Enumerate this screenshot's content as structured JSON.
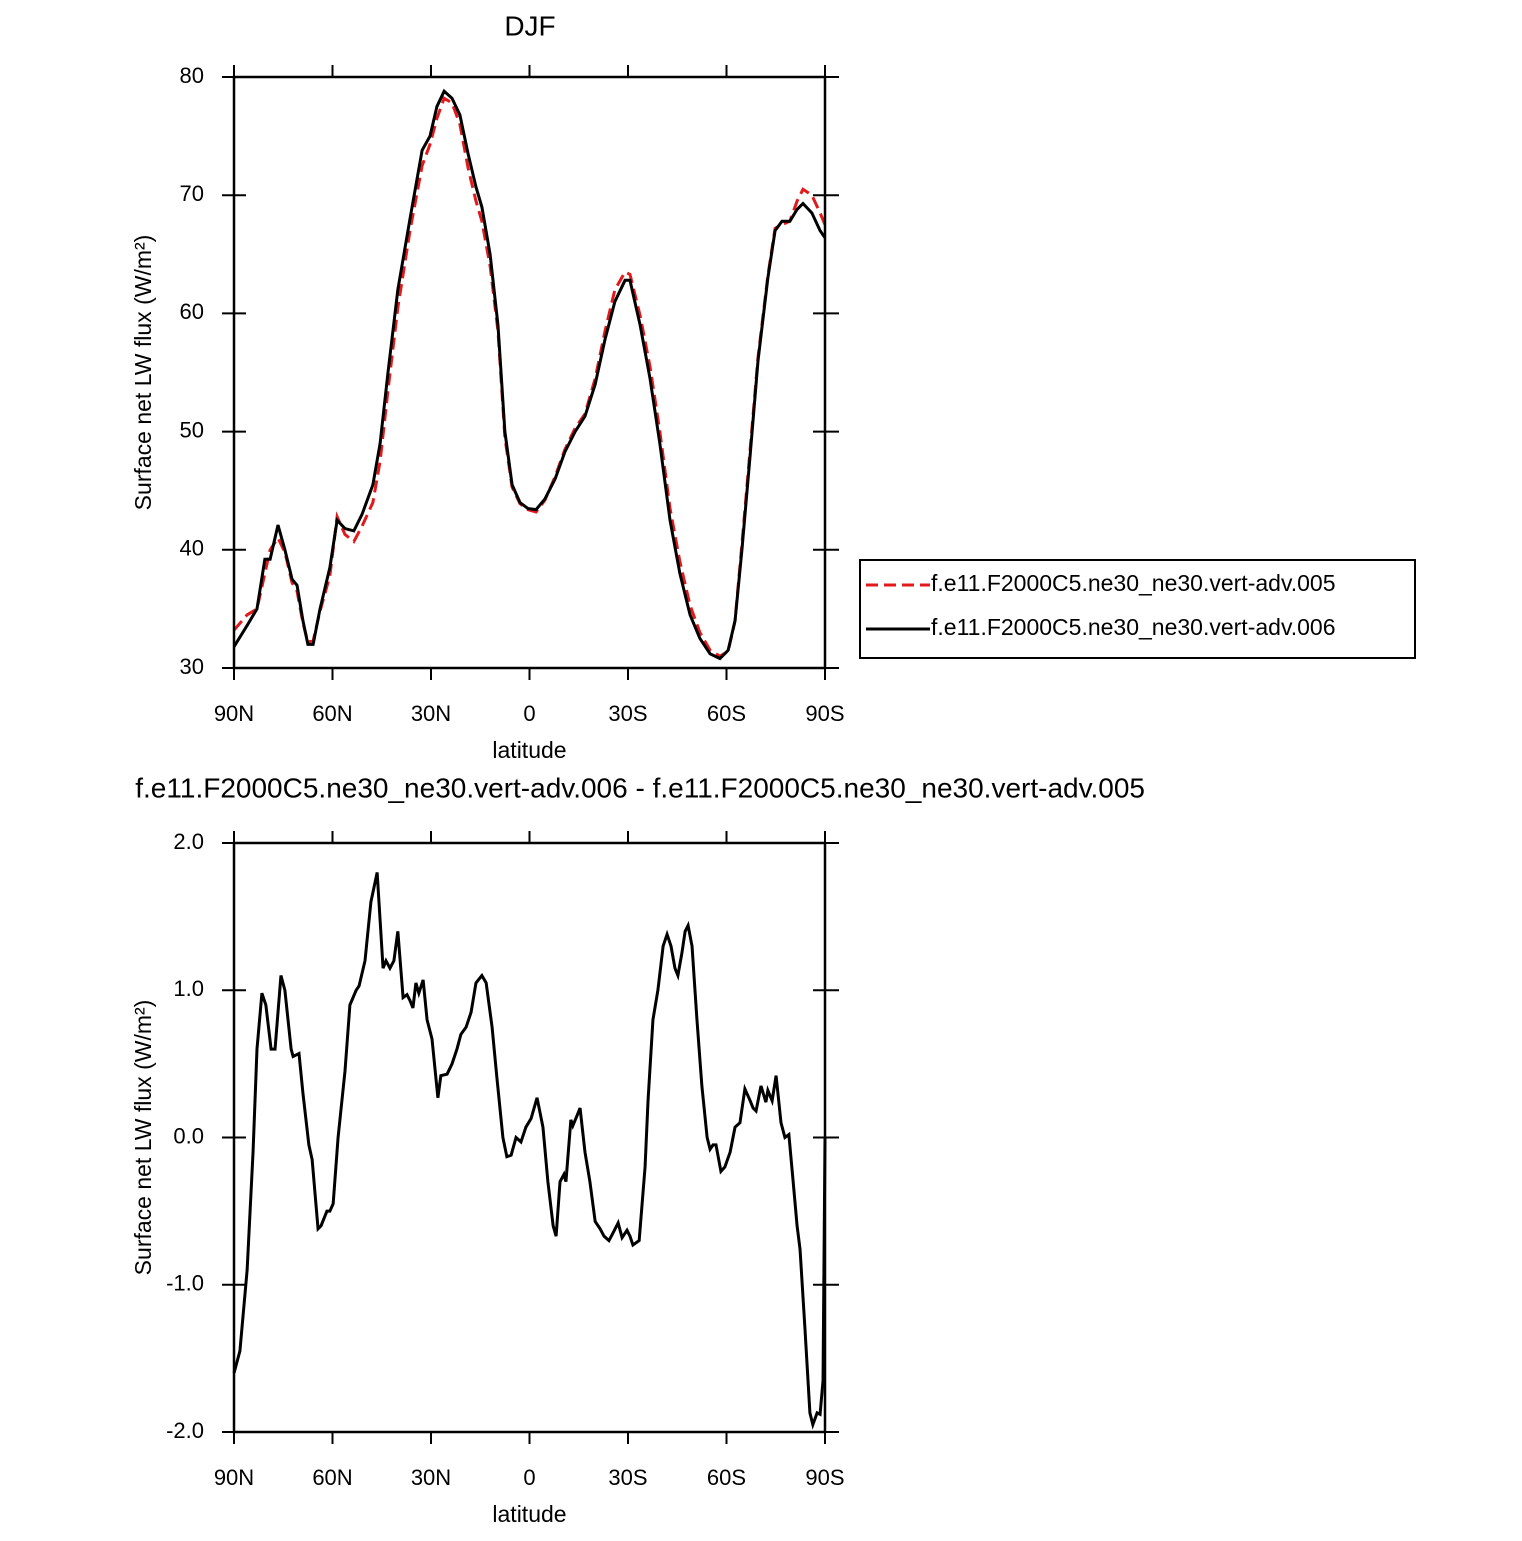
{
  "chart_data": [
    {
      "type": "line",
      "title": "DJF",
      "xlabel": "latitude",
      "ylabel": "Surface net LW flux (W/m²)",
      "x": [
        90,
        86.0,
        83.0,
        80.6,
        79.0,
        76.6,
        74.5,
        72.3,
        70.8,
        69.0,
        67.5,
        65.9,
        63.8,
        60.8,
        58.6,
        56.2,
        53.5,
        51.0,
        47.7,
        45.5,
        43.1,
        40.1,
        36.4,
        32.7,
        30.3,
        28.2,
        26.0,
        23.6,
        21.2,
        18.7,
        16.3,
        14.5,
        12.0,
        9.6,
        7.5,
        5.3,
        2.9,
        0.5,
        -2.0,
        -4.7,
        -7.8,
        -10.8,
        -13.9,
        -16.9,
        -20.0,
        -23.0,
        -26.0,
        -29.1,
        -30.6,
        -33.7,
        -36.7,
        -39.7,
        -42.8,
        -45.8,
        -48.9,
        -51.9,
        -55.0,
        -58.0,
        -60.5,
        -62.6,
        -64.7,
        -67.2,
        -69.6,
        -72.6,
        -74.8,
        -76.9,
        -79.3,
        -81.5,
        -83.3,
        -86.0,
        -88.5,
        -90
      ],
      "series": [
        {
          "name": "f.e11.F2000C5.ne30_ne30.vert-adv.005",
          "color": "#e31a1c",
          "linestyle": "dashed",
          "values": [
            33.2,
            34.5,
            35,
            38,
            40,
            41,
            39.8,
            37.2,
            36.5,
            33.8,
            32.2,
            32.3,
            34.8,
            37.8,
            42.8,
            41.3,
            40.7,
            42,
            44,
            47.5,
            53.5,
            60.5,
            67,
            72.5,
            74.3,
            76.5,
            78.2,
            77.8,
            76,
            72.3,
            69.5,
            67.8,
            64,
            58.5,
            49.5,
            45.3,
            43.9,
            43.4,
            43.2,
            44.2,
            46.2,
            48.5,
            50.3,
            51.5,
            54.5,
            58.5,
            62,
            63.5,
            63.3,
            59.8,
            55.5,
            50,
            43.5,
            39,
            35.3,
            33,
            31.5,
            31,
            31.4,
            34,
            40.5,
            48.5,
            56.3,
            63.2,
            67.2,
            67.5,
            67.8,
            69.5,
            70.5,
            70,
            68.5,
            67.5
          ]
        },
        {
          "name": "f.e11.F2000C5.ne30_ne30.vert-adv.006",
          "color": "#000000",
          "linestyle": "solid",
          "values": [
            31.8,
            33.6,
            35,
            39.2,
            39.2,
            42.1,
            40,
            37.5,
            37,
            34,
            32,
            32,
            35,
            38.5,
            42.5,
            41.8,
            41.6,
            43,
            45.5,
            49,
            55,
            62,
            68,
            73.8,
            75,
            77.5,
            78.8,
            78.2,
            76.8,
            73.5,
            70.7,
            69,
            65,
            59,
            50,
            45.5,
            44,
            43.5,
            43.4,
            44.3,
            46,
            48.3,
            50,
            51.3,
            54,
            57.8,
            61,
            62.8,
            62.8,
            59,
            54.5,
            49,
            42.5,
            38,
            34.5,
            32.5,
            31.2,
            30.8,
            31.5,
            34,
            40,
            48,
            56,
            63,
            67,
            67.8,
            67.8,
            68.8,
            69.3,
            68.5,
            67,
            66.4
          ]
        }
      ],
      "xlim": [
        90,
        -90
      ],
      "xticks": [
        {
          "value": 90,
          "label": "90N"
        },
        {
          "value": 60,
          "label": "60N"
        },
        {
          "value": 30,
          "label": "30N"
        },
        0,
        {
          "value": -30,
          "label": "30S"
        },
        {
          "value": -60,
          "label": "60S"
        },
        {
          "value": -90,
          "label": "90S"
        }
      ],
      "ylim": [
        30,
        80
      ],
      "yticks": [
        30,
        40,
        50,
        60,
        70,
        80
      ]
    },
    {
      "type": "line",
      "title": "f.e11.F2000C5.ne30_ne30.vert-adv.006 - f.e11.F2000C5.ne30_ne30.vert-adv.005",
      "xlabel": "latitude",
      "ylabel": "Surface net LW flux (W/m²)",
      "x": [
        90,
        88.2,
        86.0,
        84.2,
        83.0,
        81.5,
        80.3,
        78.7,
        77.5,
        75.7,
        74.5,
        72.6,
        72.0,
        70.2,
        69.0,
        67.2,
        66.2,
        64.4,
        63.5,
        61.7,
        60.8,
        59.8,
        58.3,
        56.2,
        54.7,
        52.8,
        51.9,
        50.1,
        48.3,
        46.4,
        44.6,
        43.7,
        42.5,
        41.3,
        40.1,
        38.5,
        37.3,
        36.4,
        35.5,
        34.6,
        33.7,
        32.4,
        31.2,
        29.7,
        27.9,
        27.0,
        25.1,
        23.6,
        22.1,
        20.9,
        19.3,
        17.8,
        16.3,
        14.5,
        13.2,
        11.4,
        9.9,
        8.1,
        6.9,
        5.6,
        4.1,
        2.6,
        1.1,
        -0.5,
        -2.3,
        -4.1,
        -5.6,
        -7.2,
        -8.1,
        -9.3,
        -10.5,
        -11.1,
        -12.6,
        -13.2,
        -14.5,
        -15.4,
        -16.9,
        -18.4,
        -20.0,
        -21.5,
        -22.7,
        -24.2,
        -25.4,
        -27.0,
        -28.2,
        -29.7,
        -30.6,
        -31.5,
        -33.4,
        -35.2,
        -36.1,
        -37.6,
        -39.1,
        -40.7,
        -41.9,
        -43.1,
        -44.3,
        -45.2,
        -46.4,
        -47.4,
        -48.3,
        -49.5,
        -51.0,
        -52.5,
        -54.1,
        -55.0,
        -55.9,
        -56.8,
        -58.3,
        -59.5,
        -61.1,
        -62.6,
        -64.1,
        -65.6,
        -67.2,
        -68.1,
        -69.0,
        -70.5,
        -72.0,
        -72.6,
        -73.9,
        -75.1,
        -76.6,
        -77.8,
        -79.0,
        -80.3,
        -81.5,
        -82.4,
        -83.9,
        -85.4,
        -86.3,
        -87.6,
        -88.5,
        -89.4,
        -90
      ],
      "values": [
        -1.6,
        -1.45,
        -0.9,
        -0.1,
        0.6,
        0.98,
        0.9,
        0.6,
        0.6,
        1.1,
        1.0,
        0.6,
        0.55,
        0.57,
        0.3,
        -0.05,
        -0.15,
        -0.62,
        -0.6,
        -0.5,
        -0.5,
        -0.45,
        0.0,
        0.45,
        0.9,
        1.0,
        1.03,
        1.2,
        1.6,
        1.8,
        1.15,
        1.2,
        1.15,
        1.2,
        1.4,
        0.95,
        0.97,
        0.93,
        0.88,
        1.05,
        0.98,
        1.07,
        0.8,
        0.67,
        0.27,
        0.42,
        0.43,
        0.5,
        0.6,
        0.7,
        0.75,
        0.85,
        1.05,
        1.1,
        1.05,
        0.75,
        0.4,
        0.0,
        -0.13,
        -0.12,
        0.0,
        -0.03,
        0.07,
        0.13,
        0.27,
        0.07,
        -0.3,
        -0.6,
        -0.67,
        -0.3,
        -0.25,
        -0.3,
        0.12,
        0.08,
        0.15,
        0.2,
        -0.1,
        -0.3,
        -0.57,
        -0.62,
        -0.67,
        -0.7,
        -0.65,
        -0.58,
        -0.68,
        -0.63,
        -0.67,
        -0.73,
        -0.7,
        -0.2,
        0.25,
        0.8,
        1.0,
        1.3,
        1.38,
        1.3,
        1.15,
        1.1,
        1.25,
        1.4,
        1.44,
        1.3,
        0.8,
        0.35,
        0.0,
        -0.08,
        -0.05,
        -0.05,
        -0.23,
        -0.2,
        -0.1,
        0.07,
        0.1,
        0.33,
        0.25,
        0.2,
        0.18,
        0.35,
        0.24,
        0.32,
        0.25,
        0.42,
        0.1,
        0.0,
        0.02,
        -0.3,
        -0.6,
        -0.76,
        -1.3,
        -1.87,
        -1.95,
        -1.87,
        -1.88,
        -1.65,
        0.0
      ],
      "color": "#000000",
      "xlim": [
        90,
        -90
      ],
      "xticks": [
        {
          "value": 90,
          "label": "90N"
        },
        {
          "value": 60,
          "label": "60N"
        },
        {
          "value": 30,
          "label": "30N"
        },
        0,
        {
          "value": -30,
          "label": "30S"
        },
        {
          "value": -60,
          "label": "60S"
        },
        {
          "value": -90,
          "label": "90S"
        }
      ],
      "ylim": [
        -2,
        2
      ],
      "yticks": [
        {
          "value": -2,
          "label": "-2.0"
        },
        {
          "value": -1,
          "label": "-1.0"
        },
        {
          "value": 0,
          "label": "0.0"
        },
        {
          "value": 1,
          "label": "1.0"
        },
        {
          "value": 2,
          "label": "2.0"
        }
      ]
    }
  ]
}
